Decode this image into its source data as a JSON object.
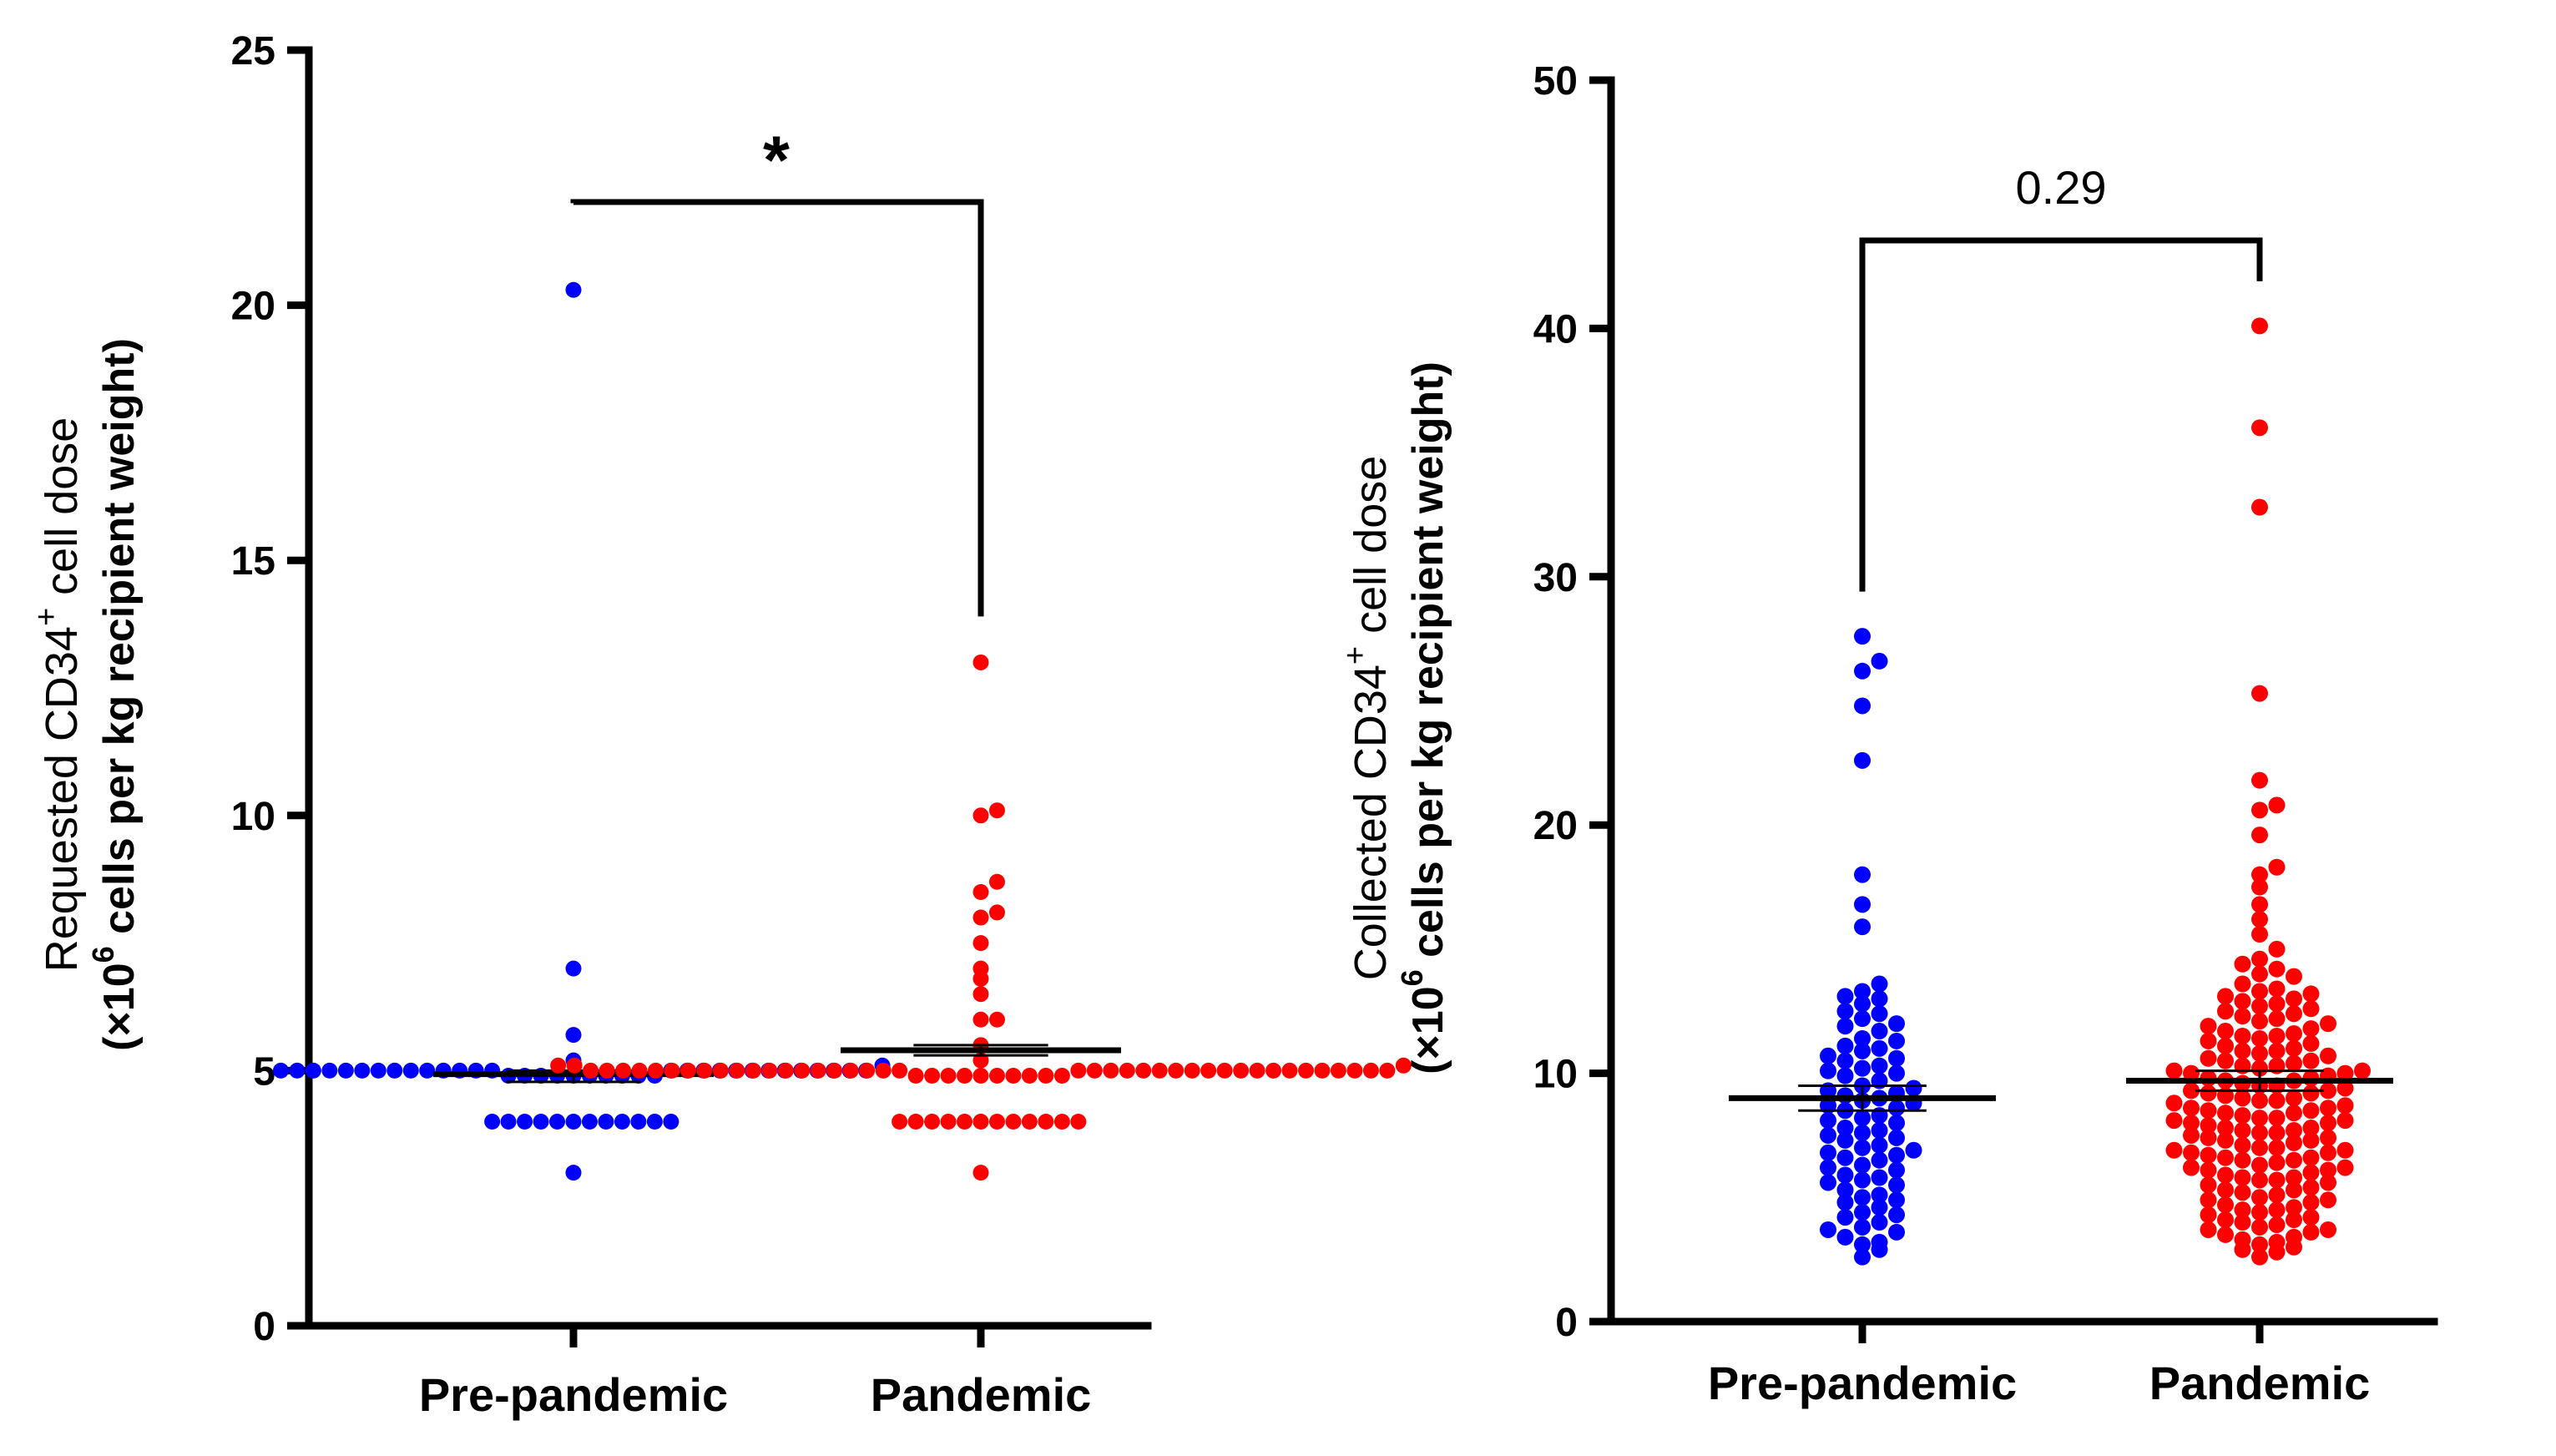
{
  "colors": {
    "pre_pandemic": "#0000ff",
    "pandemic": "#ff0000",
    "axis": "#000000"
  },
  "chart_data": [
    {
      "type": "scatter",
      "subtype": "dot-plot",
      "categories": [
        "Pre-pandemic",
        "Pandemic"
      ],
      "ylabel_main": "Requested CD34",
      "ylabel_sup": "+",
      "ylabel_tail": " cell dose",
      "ylabel2_pre": "(×10",
      "ylabel2_sup": "6",
      "ylabel2_tail": " cells per kg recipient weight)",
      "ylim": [
        0,
        25
      ],
      "yticks": [
        0,
        5,
        10,
        15,
        20,
        25
      ],
      "significance": "*",
      "series": [
        {
          "name": "Pre-pandemic",
          "mean": 4.93,
          "sem_low": 4.78,
          "sem_high": 5.0,
          "values": [
            20.3,
            7.0,
            5.7,
            5.2,
            5.1,
            5.0,
            5.0,
            5.0,
            5.0,
            5.0,
            5.0,
            5.0,
            5.0,
            5.0,
            5.0,
            5.0,
            5.0,
            5.0,
            5.0,
            5.0,
            5.0,
            5.0,
            5.0,
            5.0,
            5.0,
            5.0,
            5.0,
            5.0,
            5.0,
            5.0,
            5.0,
            5.0,
            4.9,
            4.9,
            4.9,
            4.9,
            4.9,
            4.9,
            4.9,
            4.9,
            4.9,
            4.9,
            4.0,
            4.0,
            4.0,
            4.0,
            4.0,
            4.0,
            4.0,
            4.0,
            4.0,
            4.0,
            4.0,
            4.0,
            3.0
          ]
        },
        {
          "name": "Pandemic",
          "mean": 5.4,
          "sem_low": 5.3,
          "sem_high": 5.5,
          "values": [
            13.0,
            10.1,
            10.0,
            8.7,
            8.5,
            8.1,
            8.0,
            7.5,
            7.0,
            6.8,
            6.5,
            6.0,
            6.0,
            5.5,
            5.2,
            5.1,
            5.1,
            5.1,
            5.0,
            5.0,
            5.0,
            5.0,
            5.0,
            5.0,
            5.0,
            5.0,
            5.0,
            5.0,
            5.0,
            5.0,
            5.0,
            5.0,
            5.0,
            5.0,
            5.0,
            5.0,
            5.0,
            5.0,
            5.0,
            5.0,
            5.0,
            5.0,
            5.0,
            5.0,
            5.0,
            5.0,
            5.0,
            5.0,
            5.0,
            5.0,
            5.0,
            5.0,
            5.0,
            5.0,
            5.0,
            5.0,
            5.0,
            5.0,
            4.9,
            4.9,
            4.9,
            4.9,
            4.9,
            4.9,
            4.9,
            4.9,
            4.9,
            4.9,
            4.0,
            4.0,
            4.0,
            4.0,
            4.0,
            4.0,
            4.0,
            4.0,
            4.0,
            4.0,
            4.0,
            4.0,
            3.0
          ]
        }
      ]
    },
    {
      "type": "scatter",
      "subtype": "dot-plot",
      "categories": [
        "Pre-pandemic",
        "Pandemic"
      ],
      "ylabel_main": "Collected CD34",
      "ylabel_sup": "+",
      "ylabel_tail": " cell dose",
      "ylabel2_pre": "(×10",
      "ylabel2_sup": "6",
      "ylabel2_tail": " cells per kg recipient weight)",
      "ylim": [
        0,
        50
      ],
      "yticks": [
        0,
        10,
        20,
        30,
        40,
        50
      ],
      "significance": "0.29",
      "series": [
        {
          "name": "Pre-pandemic",
          "mean": 9.0,
          "sem_low": 8.5,
          "sem_high": 9.5,
          "values": [
            27.6,
            26.6,
            26.2,
            24.8,
            22.6,
            18.0,
            16.8,
            15.9,
            13.6,
            13.3,
            13.1,
            12.8,
            12.5,
            12.2,
            11.9,
            11.7,
            11.4,
            11.1,
            10.9,
            10.7,
            10.5,
            10.3,
            10.1,
            9.9,
            9.7,
            9.5,
            9.3,
            9.2,
            9.0,
            8.9,
            8.7,
            8.5,
            8.3,
            8.2,
            8.0,
            7.8,
            7.6,
            7.5,
            7.3,
            7.1,
            7.0,
            6.8,
            6.6,
            6.5,
            6.3,
            6.1,
            5.9,
            5.7,
            5.5,
            5.3,
            5.1,
            5.0,
            4.8,
            4.6,
            4.4,
            4.2,
            4.0,
            3.8,
            3.6,
            3.4,
            3.1,
            2.9,
            2.6,
            12.0,
            11.3,
            10.6,
            10.0,
            9.4,
            8.8,
            8.1,
            7.4,
            6.9,
            6.2,
            5.6,
            4.9,
            4.3,
            3.7,
            3.2,
            7.7,
            8.6,
            9.1,
            6.7,
            5.8,
            10.2,
            11.0,
            12.4,
            13.0
          ]
        },
        {
          "name": "Pandemic",
          "mean": 9.7,
          "sem_low": 9.3,
          "sem_high": 10.1,
          "values": [
            40.1,
            36.0,
            32.8,
            25.3,
            21.8,
            20.8,
            20.6,
            19.6,
            18.3,
            18.0,
            17.5,
            16.8,
            16.2,
            15.6,
            15.0,
            14.6,
            14.2,
            13.9,
            13.6,
            13.3,
            13.0,
            12.8,
            12.5,
            12.2,
            12.0,
            11.8,
            11.5,
            11.3,
            11.1,
            10.9,
            10.7,
            10.5,
            10.3,
            10.1,
            9.9,
            9.7,
            9.5,
            9.3,
            9.1,
            8.9,
            8.7,
            8.5,
            8.3,
            8.1,
            7.9,
            7.7,
            7.5,
            7.3,
            7.1,
            6.9,
            6.7,
            6.5,
            6.3,
            6.1,
            5.9,
            5.7,
            5.5,
            5.3,
            5.1,
            4.9,
            4.7,
            4.5,
            4.3,
            4.1,
            3.9,
            3.7,
            3.5,
            3.3,
            3.1,
            2.9,
            2.6,
            14.0,
            13.4,
            12.9,
            12.3,
            11.7,
            11.2,
            10.8,
            10.4,
            10.0,
            9.6,
            9.2,
            8.8,
            8.4,
            8.0,
            7.6,
            7.2,
            6.8,
            6.4,
            6.0,
            5.6,
            5.2,
            4.8,
            4.4,
            4.0,
            3.6,
            3.2,
            2.8,
            13.1,
            12.6,
            12.1,
            11.6,
            11.0,
            10.6,
            10.2,
            9.8,
            9.4,
            9.0,
            8.6,
            8.2,
            7.8,
            7.4,
            7.0,
            6.6,
            6.2,
            5.8,
            5.4,
            5.0,
            4.6,
            4.2,
            3.8,
            3.4,
            3.0,
            12.7,
            11.9,
            11.4,
            10.9,
            10.5,
            10.1,
            9.7,
            9.3,
            8.9,
            8.5,
            8.1,
            7.7,
            7.3,
            6.9,
            6.5,
            6.1,
            5.7,
            5.3,
            4.9,
            4.5,
            4.1,
            3.7,
            9.5,
            9.0,
            8.6,
            8.2,
            7.8,
            7.4,
            7.0,
            6.6,
            6.2,
            5.8,
            10.0,
            9.8,
            8.4,
            7.6,
            6.8,
            11.5,
            12.4,
            13.2,
            14.4,
            10.3,
            9.2,
            8.0
          ]
        }
      ]
    }
  ]
}
